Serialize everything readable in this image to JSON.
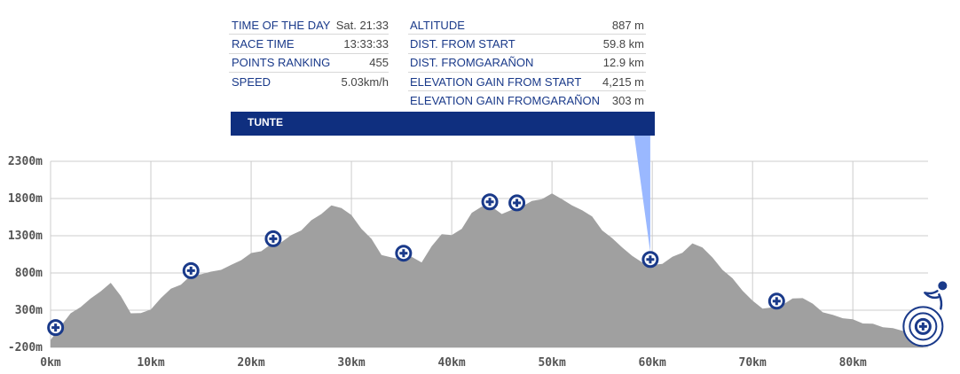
{
  "info": {
    "left": [
      {
        "label": "TIME OF THE DAY",
        "value": "Sat. 21:33"
      },
      {
        "label": "RACE TIME",
        "value": "13:33:33"
      },
      {
        "label": "POINTS RANKING",
        "value": "455"
      },
      {
        "label": "SPEED",
        "value": "5.03km/h"
      }
    ],
    "right": [
      {
        "label": "ALTITUDE",
        "value": "887 m"
      },
      {
        "label": "DIST. FROM START",
        "value": "59.8 km"
      },
      {
        "label": "DIST. FROMGARAÑON",
        "value": "12.9 km"
      },
      {
        "label": "ELEVATION GAIN FROM START",
        "value": "4,215 m"
      },
      {
        "label": "ELEVATION GAIN FROMGARAÑON",
        "value": "303 m"
      }
    ],
    "location": "TUNTE"
  },
  "colors": {
    "profile_fill": "#a0a0a0",
    "marker_blue": "#1a3a8a",
    "location_bar": "#0f2f7f",
    "pointer_fill": "#9ab8ff",
    "grid": "#cccccc"
  },
  "chart_data": {
    "type": "area",
    "xlabel": "",
    "ylabel": "",
    "xlim": [
      0,
      87.5
    ],
    "ylim": [
      -200,
      2300
    ],
    "x_ticks": [
      0,
      10,
      20,
      30,
      40,
      50,
      60,
      70,
      80
    ],
    "x_tick_labels": [
      "0km",
      "10km",
      "20km",
      "30km",
      "40km",
      "50km",
      "60km",
      "70km",
      "80km"
    ],
    "y_ticks": [
      -200,
      300,
      800,
      1300,
      1800,
      2300
    ],
    "y_tick_labels": [
      "-200m",
      "300m",
      "800m",
      "1300m",
      "1800m",
      "2300m"
    ],
    "grid": true,
    "series": [
      {
        "x": [
          0,
          1,
          2,
          3,
          4,
          5,
          6,
          7,
          8,
          9,
          10,
          11,
          12,
          13,
          14,
          15,
          16,
          17,
          18,
          19,
          20,
          21,
          22,
          23,
          24,
          25,
          26,
          27,
          28,
          29,
          30,
          31,
          32,
          33,
          34,
          35,
          36,
          37,
          38,
          39,
          40,
          41,
          42,
          43,
          44,
          45,
          46,
          47,
          48,
          49,
          50,
          51,
          52,
          53,
          54,
          55,
          56,
          57,
          58,
          59,
          60,
          61,
          62,
          63,
          64,
          65,
          66,
          67,
          68,
          69,
          70,
          71,
          72,
          73,
          74,
          75,
          76,
          77,
          78,
          79,
          80,
          81,
          82,
          83,
          84,
          85,
          86,
          87
        ],
        "y": [
          -100,
          90,
          250,
          350,
          450,
          560,
          660,
          500,
          250,
          270,
          300,
          470,
          580,
          650,
          760,
          790,
          810,
          850,
          900,
          980,
          1060,
          1100,
          1180,
          1220,
          1300,
          1380,
          1500,
          1600,
          1700,
          1680,
          1570,
          1400,
          1250,
          1050,
          1000,
          990,
          1010,
          950,
          1150,
          1330,
          1300,
          1400,
          1600,
          1700,
          1680,
          1600,
          1640,
          1700,
          1760,
          1800,
          1860,
          1800,
          1700,
          1650,
          1550,
          1380,
          1260,
          1150,
          1020,
          950,
          900,
          930,
          1010,
          1080,
          1190,
          1150,
          1000,
          850,
          720,
          570,
          420,
          330,
          330,
          380,
          450,
          470,
          380,
          280,
          230,
          200,
          170,
          130,
          110,
          80,
          50,
          30,
          20,
          10
        ]
      }
    ],
    "annotations": [
      {
        "label": "TUNTE",
        "x": 59.8,
        "y": 887
      }
    ],
    "markers_x": [
      0.5,
      14,
      22.2,
      35.2,
      43.8,
      46.5,
      59.8,
      72.4,
      87
    ]
  }
}
